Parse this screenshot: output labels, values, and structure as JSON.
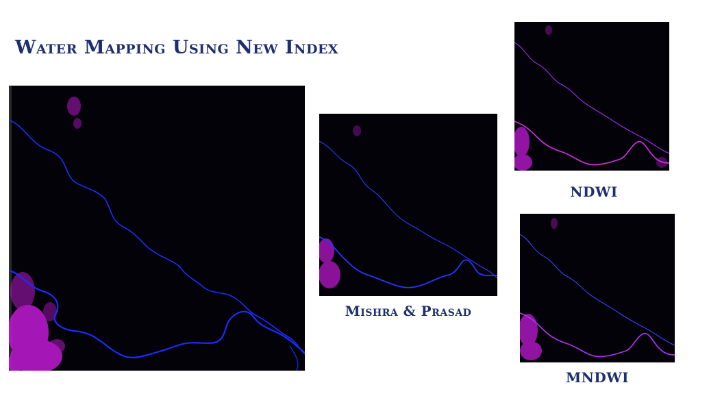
{
  "slide": {
    "title": "Water Mapping Using New Index",
    "captions": {
      "mishra_prasad": "Mishra & Prasad",
      "ndwi": "NDWI",
      "mndwi": "MNDWI"
    }
  },
  "colors": {
    "title_text": "#1d2f6e",
    "image_background": "#000000",
    "river_blue": "#1a2cff",
    "water_magenta": "#c21ad6"
  },
  "images": [
    {
      "name": "new-index-water-map",
      "river_color": "#1a2cff"
    },
    {
      "name": "mishra-prasad-water-map",
      "river_color": "#2a35ff"
    },
    {
      "name": "ndwi-water-map",
      "river_color": "#d030e0"
    },
    {
      "name": "mndwi-water-map",
      "river_color": "#b030f0"
    }
  ]
}
